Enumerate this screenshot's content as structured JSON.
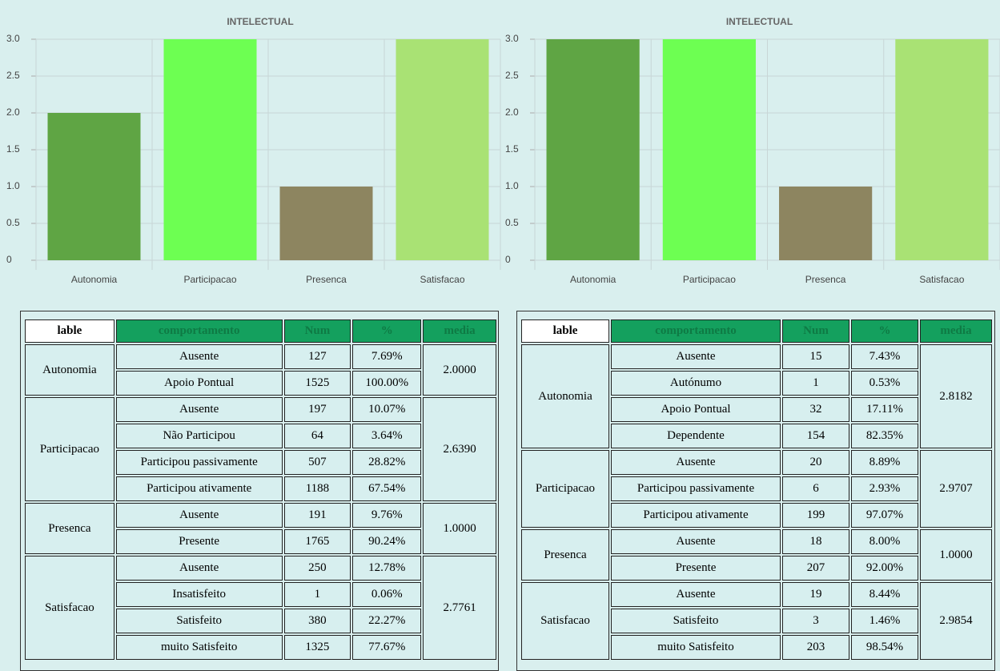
{
  "chart_data": [
    {
      "type": "bar",
      "title": "INTELECTUAL",
      "categories": [
        "Autonomia",
        "Participacao",
        "Presenca",
        "Satisfacao"
      ],
      "values": [
        2.0,
        3.0,
        1.0,
        3.0
      ],
      "colors": [
        "#5fa544",
        "#6dff52",
        "#8d8560",
        "#a9e274"
      ],
      "ylim": [
        0,
        3
      ],
      "yticks": [
        0,
        0.5,
        {
          "value": 1,
          "label": "1.0"
        },
        1.5,
        {
          "value": 2,
          "label": "2.0"
        },
        2.5,
        {
          "value": 3,
          "label": "3.0"
        }
      ],
      "grid": true
    },
    {
      "type": "bar",
      "title": "INTELECTUAL",
      "categories": [
        "Autonomia",
        "Participacao",
        "Presenca",
        "Satisfacao"
      ],
      "values": [
        3.0,
        3.0,
        1.0,
        3.0
      ],
      "colors": [
        "#5fa544",
        "#6dff52",
        "#8d8560",
        "#a9e274"
      ],
      "ylim": [
        0,
        3
      ],
      "yticks": [
        0,
        0.5,
        {
          "value": 1,
          "label": "1.0"
        },
        1.5,
        {
          "value": 2,
          "label": "2.0"
        },
        2.5,
        {
          "value": 3,
          "label": "3.0"
        }
      ],
      "grid": true
    }
  ],
  "tables": [
    {
      "header": [
        "lable",
        "comportamento",
        "Num",
        "%",
        "media"
      ],
      "groups": [
        {
          "label": "Autonomia",
          "media": "2.0000",
          "rows": [
            [
              "Ausente",
              127,
              "7.69%"
            ],
            [
              "Apoio Pontual",
              1525,
              "100.00%"
            ]
          ]
        },
        {
          "label": "Participacao",
          "media": "2.6390",
          "rows": [
            [
              "Ausente",
              197,
              "10.07%"
            ],
            [
              "Não Participou",
              64,
              "3.64%"
            ],
            [
              "Participou passivamente",
              507,
              "28.82%"
            ],
            [
              "Participou ativamente",
              1188,
              "67.54%"
            ]
          ]
        },
        {
          "label": "Presenca",
          "media": "1.0000",
          "rows": [
            [
              "Ausente",
              191,
              "9.76%"
            ],
            [
              "Presente",
              1765,
              "90.24%"
            ]
          ]
        },
        {
          "label": "Satisfacao",
          "media": "2.7761",
          "rows": [
            [
              "Ausente",
              250,
              "12.78%"
            ],
            [
              "Insatisfeito",
              1,
              "0.06%"
            ],
            [
              "Satisfeito",
              380,
              "22.27%"
            ],
            [
              "muito Satisfeito",
              1325,
              "77.67%"
            ]
          ]
        }
      ]
    },
    {
      "header": [
        "lable",
        "comportamento",
        "Num",
        "%",
        "media"
      ],
      "groups": [
        {
          "label": "Autonomia",
          "media": "2.8182",
          "rows": [
            [
              "Ausente",
              15,
              "7.43%"
            ],
            [
              "Autónumo",
              1,
              "0.53%"
            ],
            [
              "Apoio Pontual",
              32,
              "17.11%"
            ],
            [
              "Dependente",
              154,
              "82.35%"
            ]
          ]
        },
        {
          "label": "Participacao",
          "media": "2.9707",
          "rows": [
            [
              "Ausente",
              20,
              "8.89%"
            ],
            [
              "Participou passivamente",
              6,
              "2.93%"
            ],
            [
              "Participou ativamente",
              199,
              "97.07%"
            ]
          ]
        },
        {
          "label": "Presenca",
          "media": "1.0000",
          "rows": [
            [
              "Ausente",
              18,
              "8.00%"
            ],
            [
              "Presente",
              207,
              "92.00%"
            ]
          ]
        },
        {
          "label": "Satisfacao",
          "media": "2.9854",
          "rows": [
            [
              "Ausente",
              19,
              "8.44%"
            ],
            [
              "Satisfeito",
              3,
              "1.46%"
            ],
            [
              "muito Satisfeito",
              203,
              "98.54%"
            ]
          ]
        }
      ]
    }
  ]
}
